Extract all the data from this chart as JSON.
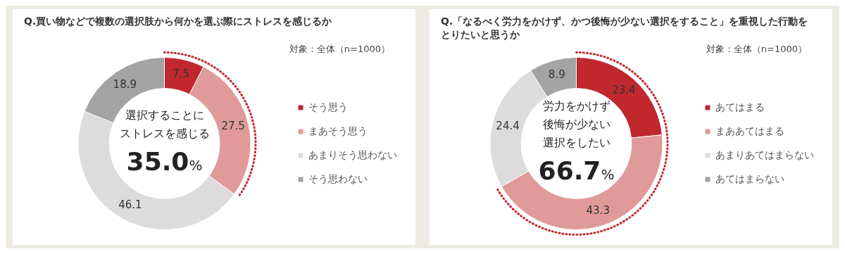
{
  "chart_data": [
    {
      "type": "donut",
      "title": "Q.買い物などで複数の選択肢から何かを選ぶ際にストレスを感じるか",
      "categories": [
        "そう思う",
        "まあそう思う",
        "あまりそう思わない",
        "そう思わない"
      ],
      "values": [
        7.5,
        27.5,
        46.1,
        18.9
      ],
      "colors": [
        "#c0282e",
        "#e09a9a",
        "#dcdcdc",
        "#a3a3a3"
      ],
      "data_labels": true,
      "legend": "right",
      "annotations": [
        "対象：全体（n=1000）",
        "選択することに",
        "ストレスを感じる",
        "35.0%"
      ]
    },
    {
      "type": "donut",
      "title": "Q.「なるべく労力をかけず、かつ後悔が少ない選択をすること」を重視した行動をとりたいと思うか",
      "categories": [
        "あてはまる",
        "まああてはまる",
        "あまりあてはまらない",
        "あてはまらない"
      ],
      "values": [
        23.4,
        43.3,
        24.4,
        8.9
      ],
      "colors": [
        "#c0282e",
        "#e09a9a",
        "#dcdcdc",
        "#a3a3a3"
      ],
      "data_labels": true,
      "legend": "right",
      "annotations": [
        "対象：全体（n=1000）",
        "労力をかけず",
        "後悔が少ない",
        "選択をしたい",
        "66.7%"
      ]
    }
  ]
}
